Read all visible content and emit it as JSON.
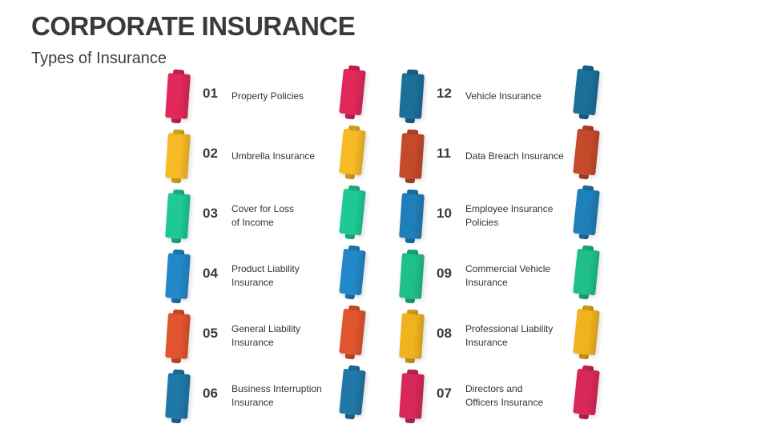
{
  "title": "CORPORATE INSURANCE",
  "subtitle": "Types of Insurance",
  "items": [
    {
      "num": "01",
      "label": "Property Policies",
      "color": "#e0285a"
    },
    {
      "num": "02",
      "label": "Umbrella Insurance",
      "color": "#f7b924"
    },
    {
      "num": "03",
      "label": "Cover for Loss\nof Income",
      "color": "#1fc996"
    },
    {
      "num": "04",
      "label": "Product Liability\nInsurance",
      "color": "#2288c8"
    },
    {
      "num": "05",
      "label": "General Liability\nInsurance",
      "color": "#e0552e"
    },
    {
      "num": "06",
      "label": "Business Interruption\nInsurance",
      "color": "#1f78a8"
    },
    {
      "num": "12",
      "label": "Vehicle Insurance",
      "color": "#1b6f98"
    },
    {
      "num": "11",
      "label": "Data Breach Insurance",
      "color": "#c54a2c"
    },
    {
      "num": "10",
      "label": "Employee Insurance\nPolicies",
      "color": "#1f7fb8"
    },
    {
      "num": "09",
      "label": "Commercial Vehicle\nInsurance",
      "color": "#1fbf8c"
    },
    {
      "num": "08",
      "label": "Professional Liability\nInsurance",
      "color": "#f0b21e"
    },
    {
      "num": "07",
      "label": "Directors and\nOfficers Insurance",
      "color": "#d8285a"
    }
  ]
}
